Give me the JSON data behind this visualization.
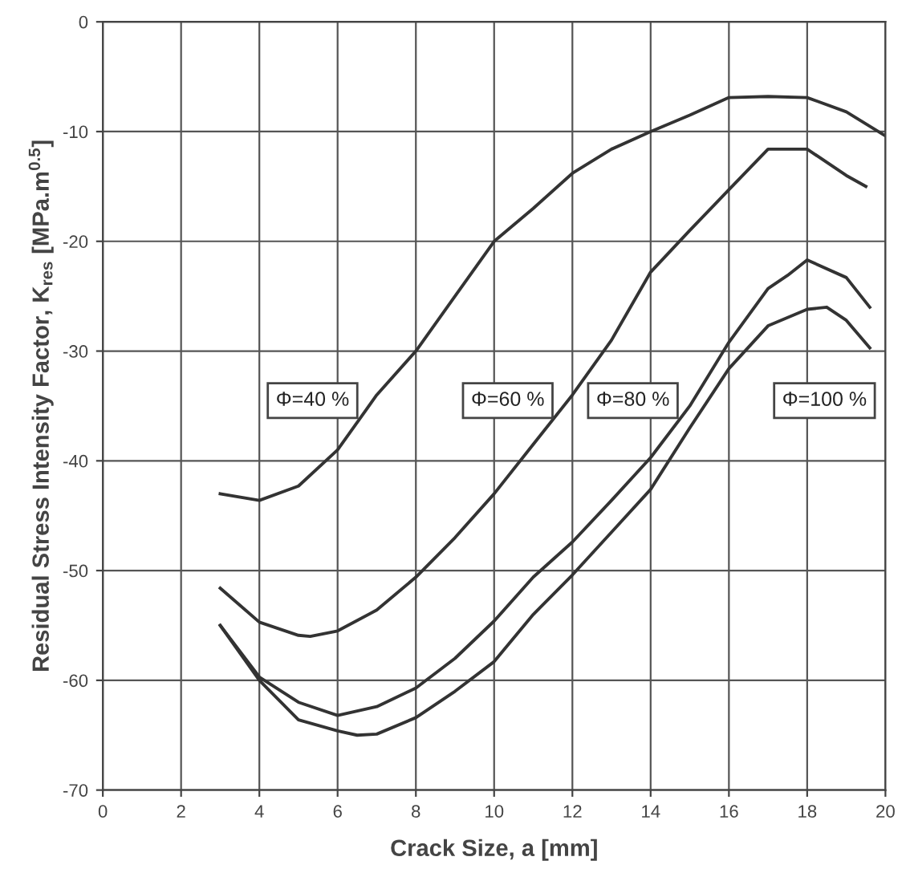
{
  "chart_data": {
    "type": "line",
    "xlabel": "Crack Size, a [mm]",
    "ylabel": "Residual Stress Intensity Factor, K$_{res}$ [MPa.m$^{0.5}$]",
    "xlim": [
      0,
      20
    ],
    "ylim": [
      -70,
      0
    ],
    "xticks": [
      0,
      2,
      4,
      6,
      8,
      10,
      12,
      14,
      16,
      18,
      20
    ],
    "yticks": [
      -70,
      -60,
      -50,
      -40,
      -30,
      -20,
      -10,
      0
    ],
    "grid": true,
    "legend": false,
    "marker": "none",
    "line_style": "solid",
    "series": [
      {
        "name": "Φ=40 %",
        "color": "#333333",
        "x": [
          3,
          4,
          5,
          6,
          7,
          8,
          9,
          10,
          11,
          12,
          13,
          14,
          15,
          16,
          17,
          18,
          19,
          20
        ],
        "values": [
          -43,
          -43.6,
          -42.3,
          -39,
          -34,
          -30,
          -25,
          -20,
          -17,
          -13.8,
          -11.6,
          -10,
          -8.5,
          -6.9,
          -6.8,
          -6.9,
          -8.2,
          -10.4
        ]
      },
      {
        "name": "Φ=60 %",
        "color": "#333333",
        "x": [
          3,
          4,
          5,
          5.3,
          6,
          7,
          8,
          9,
          10,
          11,
          12,
          13,
          14,
          15,
          16,
          17,
          18,
          19,
          19.5
        ],
        "values": [
          -51.6,
          -54.7,
          -55.9,
          -56,
          -55.5,
          -53.6,
          -50.6,
          -47,
          -43,
          -38.5,
          -34,
          -29,
          -22.8,
          -19,
          -15.3,
          -11.6,
          -11.6,
          -14,
          -15
        ]
      },
      {
        "name": "Φ=80 %",
        "color": "#333333",
        "x": [
          3,
          4,
          5,
          6,
          7,
          8,
          9,
          10,
          11,
          12,
          13,
          14,
          15,
          16,
          17,
          17.5,
          18,
          19,
          19.6
        ],
        "values": [
          -55,
          -59.7,
          -62,
          -63.2,
          -62.4,
          -60.7,
          -58,
          -54.6,
          -50.6,
          -47.4,
          -43.6,
          -39.7,
          -35,
          -29.2,
          -24.3,
          -23.1,
          -21.7,
          -23.3,
          -26
        ]
      },
      {
        "name": "Φ=100 %",
        "color": "#333333",
        "x": [
          3,
          4,
          5,
          6,
          6.5,
          7,
          8,
          9,
          10,
          11,
          12,
          13,
          14,
          15,
          16,
          17,
          18,
          18.5,
          19,
          19.6
        ],
        "values": [
          -55,
          -60,
          -63.6,
          -64.6,
          -65,
          -64.9,
          -63.4,
          -61,
          -58.3,
          -54,
          -50.4,
          -46.5,
          -42.6,
          -37,
          -31.6,
          -27.7,
          -26.2,
          -26,
          -27.2,
          -29.7
        ]
      }
    ]
  }
}
